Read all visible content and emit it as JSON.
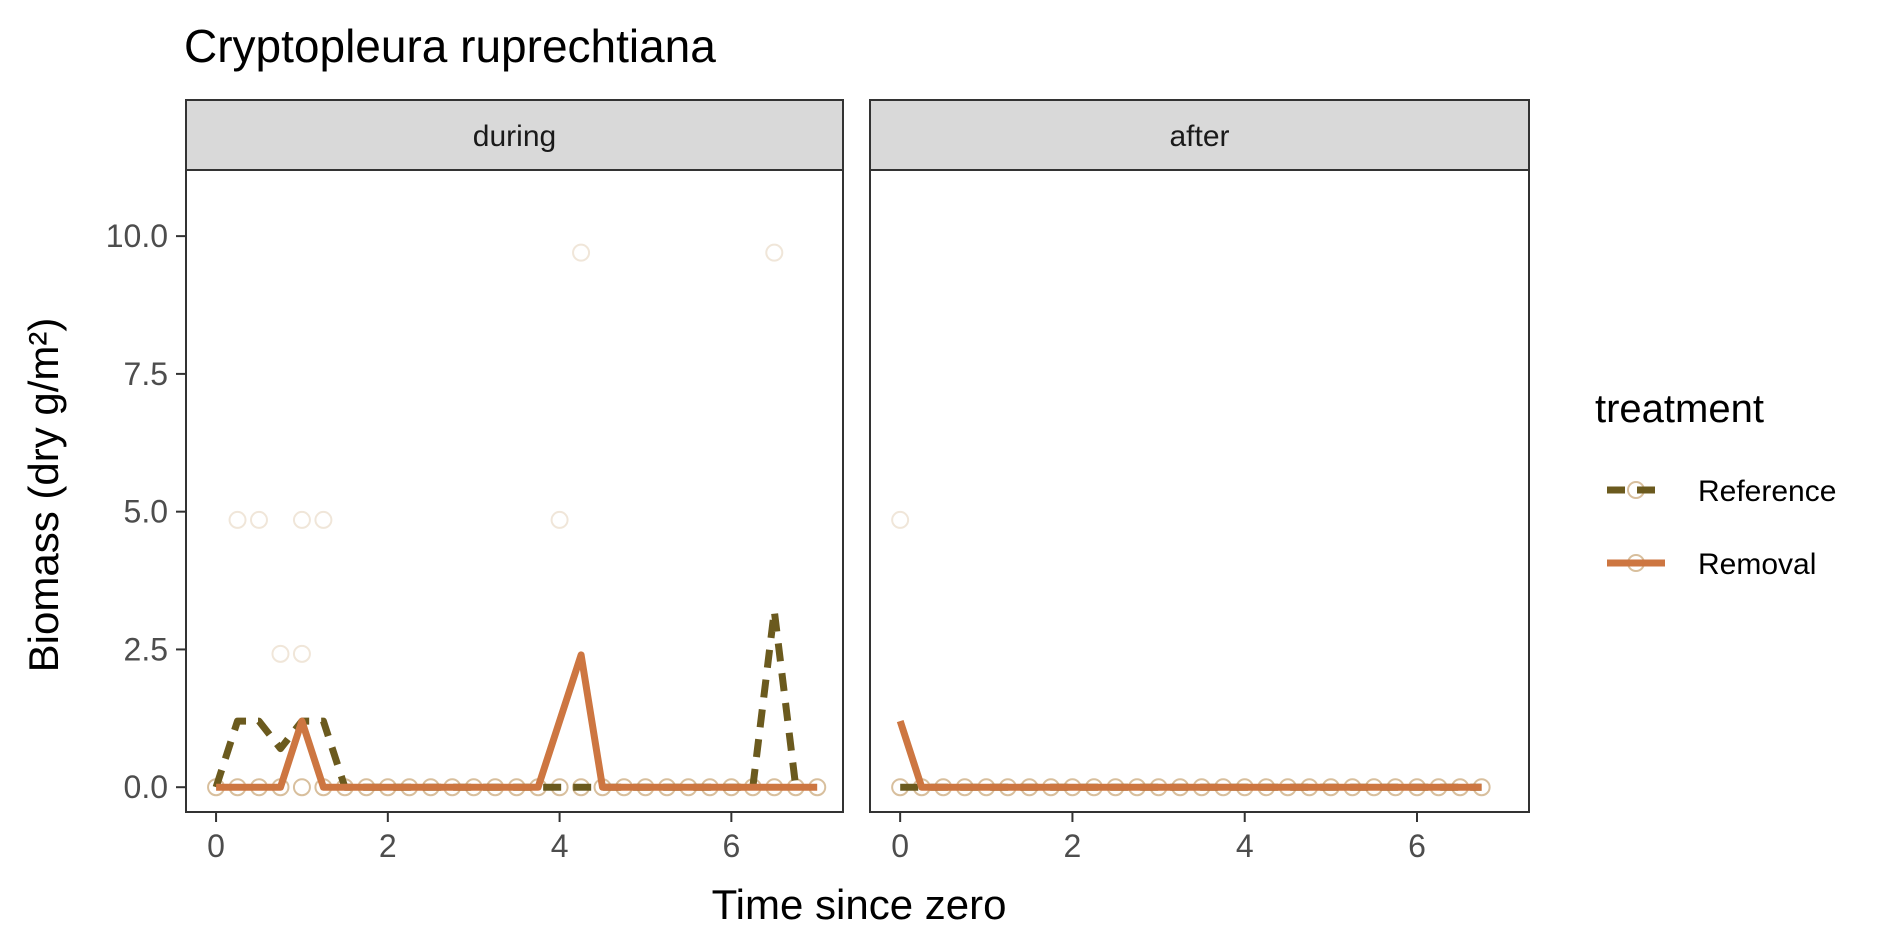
{
  "chart_data": {
    "type": "line",
    "title": "Cryptopleura ruprechtiana",
    "xlabel": "Time since zero",
    "ylabel": "Biomass (dry g/m²)",
    "ylim": [
      -0.45,
      11.2
    ],
    "y_ticks": [
      "0.0",
      "2.5",
      "5.0",
      "7.5",
      "10.0"
    ],
    "x_ticks": [
      "0",
      "2",
      "4",
      "6"
    ],
    "grid": false,
    "legend": {
      "title": "treatment",
      "position": "right",
      "entries": [
        "Reference",
        "Removal"
      ]
    },
    "colors": {
      "Reference": "#6b5a1e",
      "Removal": "#cd7641",
      "points": "#d4b892"
    },
    "panels": [
      {
        "label": "during",
        "xlim": [
          -0.35,
          7.3
        ],
        "series": [
          {
            "name": "Reference",
            "x": [
              0,
              0.25,
              0.5,
              0.75,
              1,
              1.25,
              1.5,
              1.75,
              2,
              2.25,
              2.5,
              2.75,
              3,
              3.25,
              3.5,
              3.75,
              4,
              4.25,
              4.5,
              4.75,
              5,
              5.25,
              5.5,
              5.75,
              6,
              6.25,
              6.5,
              6.75
            ],
            "y": [
              0,
              1.2,
              1.2,
              0.7,
              1.2,
              1.2,
              0,
              0,
              0,
              0,
              0,
              0,
              0,
              0,
              0,
              0,
              0,
              0,
              0,
              0,
              0,
              0,
              0,
              0,
              0,
              0,
              3.2,
              0
            ]
          },
          {
            "name": "Removal",
            "x": [
              0,
              0.25,
              0.5,
              0.75,
              1,
              1.25,
              1.5,
              1.75,
              2,
              2.25,
              2.5,
              2.75,
              3,
              3.25,
              3.5,
              3.75,
              4,
              4.25,
              4.5,
              4.75,
              5,
              5.25,
              5.5,
              5.75,
              6,
              6.25,
              6.5,
              6.75,
              7
            ],
            "y": [
              0,
              0,
              0,
              0,
              1.2,
              0,
              0,
              0,
              0,
              0,
              0,
              0,
              0,
              0,
              0,
              0,
              1.2,
              2.4,
              0,
              0,
              0,
              0,
              0,
              0,
              0,
              0,
              0,
              0,
              0
            ]
          }
        ],
        "points": [
          [
            0,
            0
          ],
          [
            0.25,
            0
          ],
          [
            0.5,
            0
          ],
          [
            0.75,
            0
          ],
          [
            1,
            0
          ],
          [
            1.25,
            0
          ],
          [
            1.5,
            0
          ],
          [
            1.75,
            0
          ],
          [
            2,
            0
          ],
          [
            2.25,
            0
          ],
          [
            2.5,
            0
          ],
          [
            2.75,
            0
          ],
          [
            3,
            0
          ],
          [
            3.25,
            0
          ],
          [
            3.5,
            0
          ],
          [
            3.75,
            0
          ],
          [
            4,
            0
          ],
          [
            4.25,
            0
          ],
          [
            4.5,
            0
          ],
          [
            4.75,
            0
          ],
          [
            5,
            0
          ],
          [
            5.25,
            0
          ],
          [
            5.5,
            0
          ],
          [
            5.75,
            0
          ],
          [
            6,
            0
          ],
          [
            6.25,
            0
          ],
          [
            6.5,
            0
          ],
          [
            6.75,
            0
          ],
          [
            7,
            0
          ],
          [
            0.25,
            4.85
          ],
          [
            0.5,
            4.85
          ],
          [
            1,
            4.85
          ],
          [
            1.25,
            4.85
          ],
          [
            4,
            4.85
          ],
          [
            0.75,
            2.42
          ],
          [
            1,
            2.42
          ],
          [
            4.25,
            9.7
          ],
          [
            6.5,
            9.7
          ]
        ]
      },
      {
        "label": "after",
        "xlim": [
          -0.35,
          7.3
        ],
        "series": [
          {
            "name": "Reference",
            "x": [
              0,
              0.25,
              0.5,
              0.75,
              1,
              1.25,
              1.5,
              1.75,
              2,
              2.25,
              2.5,
              2.75,
              3,
              3.25,
              3.5,
              3.75,
              4,
              4.25,
              4.5,
              4.75,
              5,
              5.25,
              5.5,
              5.75,
              6,
              6.25,
              6.5,
              6.75
            ],
            "y": [
              0,
              0,
              0,
              0,
              0,
              0,
              0,
              0,
              0,
              0,
              0,
              0,
              0,
              0,
              0,
              0,
              0,
              0,
              0,
              0,
              0,
              0,
              0,
              0,
              0,
              0,
              0,
              0
            ]
          },
          {
            "name": "Removal",
            "x": [
              0,
              0.25,
              0.5,
              0.75,
              1,
              1.25,
              1.5,
              1.75,
              2,
              2.25,
              2.5,
              2.75,
              3,
              3.25,
              3.5,
              3.75,
              4,
              4.25,
              4.5,
              4.75,
              5,
              5.25,
              5.5,
              5.75,
              6,
              6.25,
              6.5,
              6.75
            ],
            "y": [
              1.2,
              0,
              0,
              0,
              0,
              0,
              0,
              0,
              0,
              0,
              0,
              0,
              0,
              0,
              0,
              0,
              0,
              0,
              0,
              0,
              0,
              0,
              0,
              0,
              0,
              0,
              0,
              0
            ]
          }
        ],
        "points": [
          [
            0,
            0
          ],
          [
            0.25,
            0
          ],
          [
            0.5,
            0
          ],
          [
            0.75,
            0
          ],
          [
            1,
            0
          ],
          [
            1.25,
            0
          ],
          [
            1.5,
            0
          ],
          [
            1.75,
            0
          ],
          [
            2,
            0
          ],
          [
            2.25,
            0
          ],
          [
            2.5,
            0
          ],
          [
            2.75,
            0
          ],
          [
            3,
            0
          ],
          [
            3.25,
            0
          ],
          [
            3.5,
            0
          ],
          [
            3.75,
            0
          ],
          [
            4,
            0
          ],
          [
            4.25,
            0
          ],
          [
            4.5,
            0
          ],
          [
            4.75,
            0
          ],
          [
            5,
            0
          ],
          [
            5.25,
            0
          ],
          [
            5.5,
            0
          ],
          [
            5.75,
            0
          ],
          [
            6,
            0
          ],
          [
            6.25,
            0
          ],
          [
            6.5,
            0
          ],
          [
            6.75,
            0
          ],
          [
            0,
            4.85
          ]
        ]
      }
    ]
  }
}
